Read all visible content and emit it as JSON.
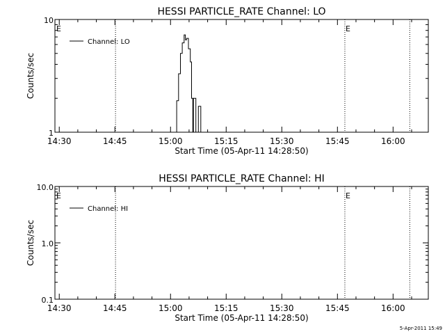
{
  "footer_timestamp": "5-Apr-2011 15:49",
  "chart_data": [
    {
      "type": "line",
      "title": "HESSI PARTICLE_RATE Channel: LO",
      "xlabel": "Start Time (05-Apr-11 14:28:50)",
      "ylabel": "Counts/sec",
      "y_scale": "log",
      "ylim": [
        1,
        10
      ],
      "y_ticks": [
        {
          "value": 1,
          "label": "1"
        },
        {
          "value": 10,
          "label": "10"
        }
      ],
      "x_ticks": [
        "14:30",
        "14:45",
        "15:00",
        "15:15",
        "15:30",
        "15:45",
        "16:00"
      ],
      "xlim": [
        "14:28:50",
        "16:09:30"
      ],
      "event_markers": [
        {
          "time": "14:45:10",
          "label": ""
        },
        {
          "time": "15:47:00",
          "label": "E"
        },
        {
          "time": "16:04:30",
          "label": ""
        }
      ],
      "start_marker_label": "E",
      "legend": {
        "position": "top-left",
        "entries": [
          "Channel: LO"
        ]
      },
      "series": [
        {
          "name": "Channel: LO",
          "points": [
            [
              "15:01:10",
              1.0
            ],
            [
              "15:01:40",
              1.9
            ],
            [
              "15:02:10",
              3.3
            ],
            [
              "15:02:40",
              5.0
            ],
            [
              "15:03:10",
              6.2
            ],
            [
              "15:03:40",
              7.3
            ],
            [
              "15:04:00",
              6.6
            ],
            [
              "15:04:20",
              6.8
            ],
            [
              "15:04:50",
              5.5
            ],
            [
              "15:05:20",
              4.2
            ],
            [
              "15:05:40",
              2.0
            ],
            [
              "15:06:00",
              1.0
            ],
            [
              "15:06:10",
              2.0
            ],
            [
              "15:06:40",
              2.0
            ],
            [
              "15:06:50",
              1.0
            ],
            [
              "15:07:20",
              1.0
            ],
            [
              "15:07:30",
              1.7
            ],
            [
              "15:08:00",
              1.7
            ],
            [
              "15:08:10",
              1.0
            ]
          ]
        }
      ]
    },
    {
      "type": "line",
      "title": "HESSI PARTICLE_RATE Channel: HI",
      "xlabel": "Start Time (05-Apr-11 14:28:50)",
      "ylabel": "Counts/sec",
      "y_scale": "log",
      "ylim": [
        0.1,
        10
      ],
      "y_ticks": [
        {
          "value": 0.1,
          "label": "0.1"
        },
        {
          "value": 1,
          "label": "1.0"
        },
        {
          "value": 10,
          "label": "10.0"
        }
      ],
      "x_ticks": [
        "14:30",
        "14:45",
        "15:00",
        "15:15",
        "15:30",
        "15:45",
        "16:00"
      ],
      "xlim": [
        "14:28:50",
        "16:09:30"
      ],
      "event_markers": [
        {
          "time": "14:45:10",
          "label": ""
        },
        {
          "time": "15:47:00",
          "label": "E"
        },
        {
          "time": "16:04:30",
          "label": ""
        }
      ],
      "start_marker_label": "E",
      "legend": {
        "position": "top-left",
        "entries": [
          "Channel: HI"
        ]
      },
      "series": [
        {
          "name": "Channel: HI",
          "points": []
        }
      ]
    }
  ]
}
